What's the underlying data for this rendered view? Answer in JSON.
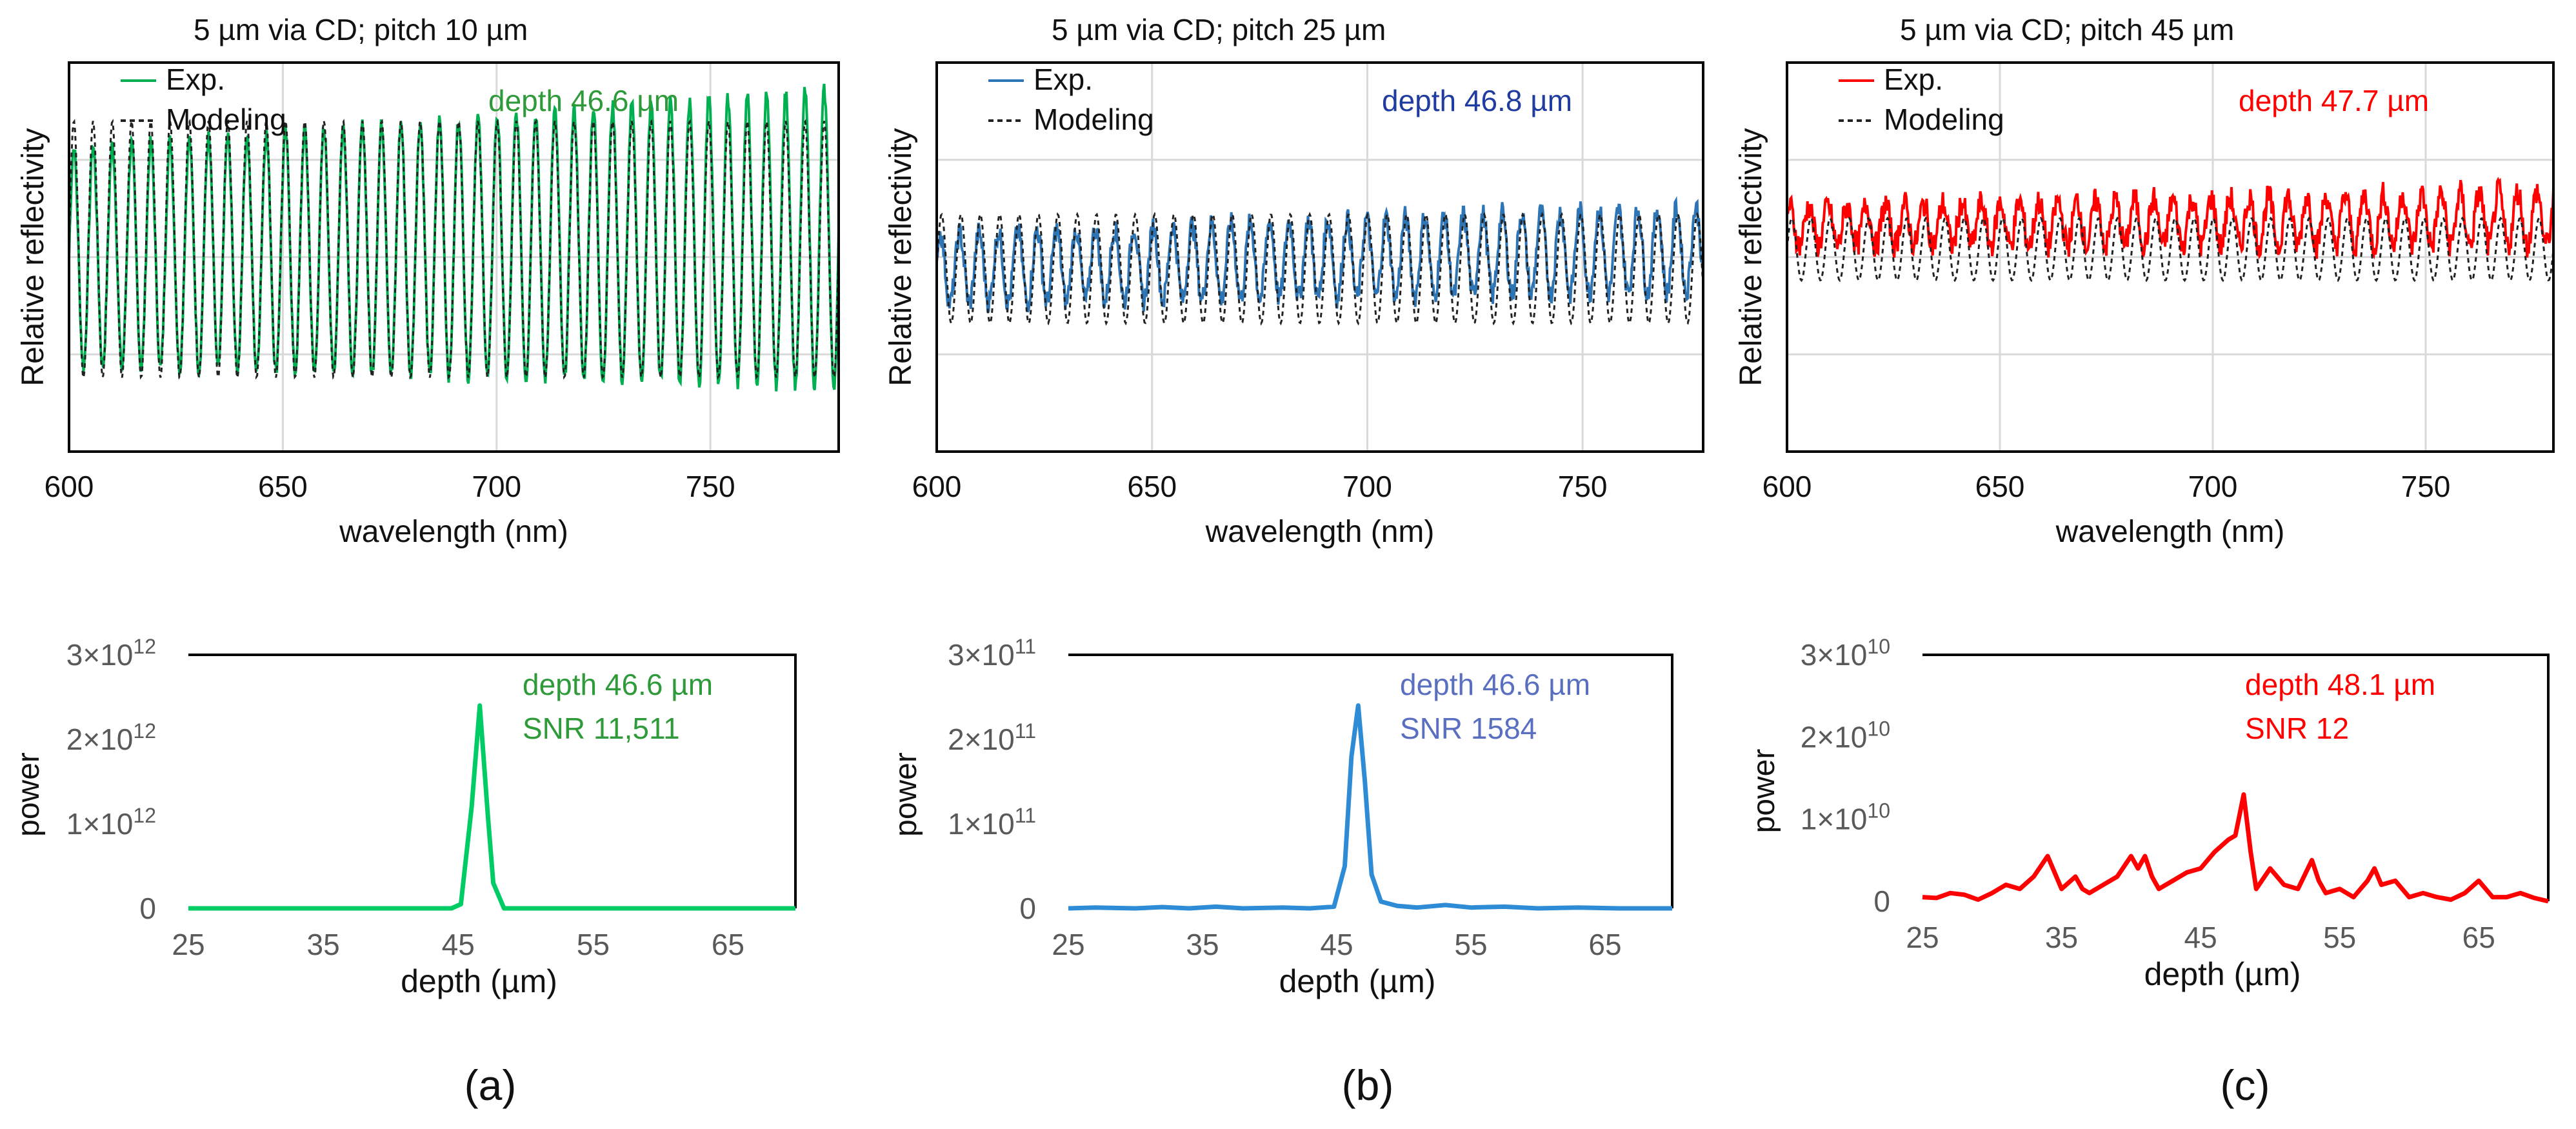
{
  "panels": [
    {
      "id": "a",
      "label": "(a)",
      "top_title": "5 µm via CD; pitch 10 µm",
      "color": "#00b050"
    },
    {
      "id": "b",
      "label": "(b)",
      "top_title": "5 µm via CD; pitch 25 µm",
      "color": "#2e75b6"
    },
    {
      "id": "c",
      "label": "(c)",
      "top_title": "5 µm via CD; pitch 45 µm",
      "color": "#ff0000"
    }
  ],
  "chart_data": [
    {
      "type": "line",
      "panel": "a",
      "title": "5 µm via CD; pitch 10 µm",
      "xlabel": "wavelength (nm)",
      "ylabel": "Relative reflectivity",
      "xlim": [
        600,
        780
      ],
      "ylim": [
        0,
        1
      ],
      "xticks": [
        600,
        650,
        700,
        750
      ],
      "yticks": [],
      "grid": true,
      "legend_position": "top-left",
      "annotation": {
        "text": "depth 46.6 µm",
        "color": "#2f9a3a"
      },
      "series": [
        {
          "name": "Exp.",
          "style": "solid",
          "color": "#00b050",
          "oscillation": {
            "period_nm": 4.5,
            "phase": 0.0,
            "amplitude_start": 0.28,
            "amplitude_end": 0.38,
            "mean_start": 0.5,
            "mean_end": 0.55,
            "noise": 0.02
          }
        },
        {
          "name": "Modeling",
          "style": "dashed",
          "color": "#222222",
          "oscillation": {
            "period_nm": 4.5,
            "phase": 0.0,
            "amplitude_start": 0.33,
            "amplitude_end": 0.33,
            "mean_start": 0.52,
            "mean_end": 0.52,
            "noise": 0.0
          }
        }
      ]
    },
    {
      "type": "line",
      "panel": "b",
      "title": "5 µm via CD; pitch 25 µm",
      "xlabel": "wavelength (nm)",
      "ylabel": "Relative reflectivity",
      "xlim": [
        600,
        778
      ],
      "ylim": [
        0,
        1
      ],
      "xticks": [
        600,
        650,
        700,
        750
      ],
      "yticks": [],
      "grid": true,
      "legend_position": "top-left",
      "annotation": {
        "text": "depth 46.8 µm",
        "color": "#1f3c9e"
      },
      "series": [
        {
          "name": "Exp.",
          "style": "solid",
          "color": "#2e75b6",
          "oscillation": {
            "period_nm": 4.5,
            "phase": 0.4,
            "amplitude_start": 0.09,
            "amplitude_end": 0.11,
            "mean_start": 0.47,
            "mean_end": 0.52,
            "noise": 0.03
          }
        },
        {
          "name": "Modeling",
          "style": "dashed",
          "color": "#222222",
          "oscillation": {
            "period_nm": 4.5,
            "phase": 0.0,
            "amplitude_start": 0.14,
            "amplitude_end": 0.14,
            "mean_start": 0.47,
            "mean_end": 0.47,
            "noise": 0.0
          }
        }
      ]
    },
    {
      "type": "line",
      "panel": "c",
      "title": "5 µm via CD; pitch 45 µm",
      "xlabel": "wavelength (nm)",
      "ylabel": "Relative reflectivity",
      "xlim": [
        600,
        780
      ],
      "ylim": [
        0,
        1
      ],
      "xticks": [
        600,
        650,
        700,
        750
      ],
      "yticks": [],
      "grid": true,
      "legend_position": "top-left",
      "annotation": {
        "text": "depth 47.7 µm",
        "color": "#ff0000"
      },
      "series": [
        {
          "name": "Exp.",
          "style": "solid",
          "color": "#ff0000",
          "oscillation": {
            "period_nm": 4.5,
            "phase": 0.7,
            "amplitude_start": 0.05,
            "amplitude_end": 0.07,
            "mean_start": 0.58,
            "mean_end": 0.6,
            "noise": 0.035
          }
        },
        {
          "name": "Modeling",
          "style": "dashed",
          "color": "#222222",
          "oscillation": {
            "period_nm": 4.5,
            "phase": 0.0,
            "amplitude_start": 0.08,
            "amplitude_end": 0.08,
            "mean_start": 0.52,
            "mean_end": 0.52,
            "noise": 0.0
          }
        }
      ]
    },
    {
      "type": "line",
      "panel": "a",
      "xlabel": "depth (µm)",
      "ylabel": "power",
      "xlim": [
        25,
        70
      ],
      "ylim": [
        0,
        3000000000000.0
      ],
      "xticks": [
        25,
        35,
        45,
        55,
        65
      ],
      "yticks": [
        0,
        1000000000000.0,
        2000000000000.0,
        3000000000000.0
      ],
      "ytick_labels": [
        {
          "m": "0",
          "e": ""
        },
        {
          "m": "1×10",
          "e": "12"
        },
        {
          "m": "2×10",
          "e": "12"
        },
        {
          "m": "3×10",
          "e": "12"
        }
      ],
      "grid": false,
      "annotations": [
        {
          "text": "depth 46.6 µm",
          "color": "#2f9a3a"
        },
        {
          "text": "SNR 11,511",
          "color": "#2f9a3a"
        }
      ],
      "series": [
        {
          "color": "#00cc66",
          "x": [
            25,
            44.5,
            45.2,
            46.0,
            46.6,
            47.2,
            47.6,
            48.4,
            70
          ],
          "y": [
            0,
            0,
            50000000000.0,
            1200000000000.0,
            2400000000000.0,
            1100000000000.0,
            300000000000.0,
            0,
            0
          ]
        }
      ]
    },
    {
      "type": "line",
      "panel": "b",
      "xlabel": "depth (µm)",
      "ylabel": "power",
      "xlim": [
        25,
        70
      ],
      "ylim": [
        0,
        300000000000.0
      ],
      "xticks": [
        25,
        35,
        45,
        55,
        65
      ],
      "yticks": [
        0,
        100000000000.0,
        200000000000.0,
        300000000000.0
      ],
      "ytick_labels": [
        {
          "m": "0",
          "e": ""
        },
        {
          "m": "1×10",
          "e": "11"
        },
        {
          "m": "2×10",
          "e": "11"
        },
        {
          "m": "3×10",
          "e": "11"
        }
      ],
      "grid": false,
      "annotations": [
        {
          "text": "depth 46.6 µm",
          "color": "#5a6fc0"
        },
        {
          "text": "SNR 1584",
          "color": "#5a6fc0"
        }
      ],
      "series": [
        {
          "color": "#2e8bd6",
          "x": [
            25,
            27,
            30,
            32,
            34,
            36,
            38,
            41,
            43,
            44.8,
            45.6,
            46.1,
            46.6,
            47.1,
            47.6,
            48.3,
            49.5,
            51,
            53.1,
            55,
            57.5,
            60,
            63,
            66,
            70
          ],
          "y": [
            0,
            1000000000.0,
            0,
            1500000000.0,
            0,
            2000000000.0,
            0,
            1000000000.0,
            0,
            2000000000.0,
            50000000000.0,
            180000000000.0,
            240000000000.0,
            150000000000.0,
            40000000000.0,
            8000000000.0,
            3000000000.0,
            1000000000.0,
            4000000000.0,
            1000000000.0,
            2000000000.0,
            0,
            1000000000.0,
            0,
            0
          ]
        }
      ]
    },
    {
      "type": "line",
      "panel": "c",
      "xlabel": "depth (µm)",
      "ylabel": "power",
      "xlim": [
        25,
        70
      ],
      "ylim": [
        0,
        30000000000.0
      ],
      "xticks": [
        25,
        35,
        45,
        55,
        65
      ],
      "yticks": [
        0,
        10000000000.0,
        20000000000.0,
        30000000000.0
      ],
      "ytick_labels": [
        {
          "m": "0",
          "e": ""
        },
        {
          "m": "1×10",
          "e": "10"
        },
        {
          "m": "2×10",
          "e": "10"
        },
        {
          "m": "3×10",
          "e": "10"
        }
      ],
      "grid": false,
      "annotations": [
        {
          "text": "depth 48.1 µm",
          "color": "#ff0000"
        },
        {
          "text": "SNR 12",
          "color": "#ff0000"
        }
      ],
      "series": [
        {
          "color": "#ff0000",
          "x": [
            25,
            26,
            27,
            28,
            29,
            30,
            31,
            32,
            33,
            34,
            34.5,
            35,
            36,
            36.5,
            37,
            38,
            39,
            40,
            40.5,
            41,
            41.5,
            42,
            43,
            44,
            45,
            46,
            47,
            47.5,
            48.1,
            48.6,
            49,
            50,
            51,
            52,
            53,
            53.5,
            54,
            55,
            56,
            57,
            57.5,
            58,
            59,
            60,
            61,
            62,
            63,
            64,
            65,
            65.5,
            66,
            67,
            68,
            69,
            70
          ],
          "y": [
            500000000.0,
            400000000.0,
            1000000000.0,
            800000000.0,
            200000000.0,
            1000000000.0,
            2000000000.0,
            1500000000.0,
            3000000000.0,
            5500000000.0,
            3500000000.0,
            1500000000.0,
            3000000000.0,
            1500000000.0,
            1000000000.0,
            2000000000.0,
            3000000000.0,
            5500000000.0,
            4000000000.0,
            5500000000.0,
            3000000000.0,
            1500000000.0,
            2500000000.0,
            3500000000.0,
            4000000000.0,
            6000000000.0,
            7500000000.0,
            8000000000.0,
            13000000000.0,
            6000000000.0,
            1500000000.0,
            4000000000.0,
            2000000000.0,
            1500000000.0,
            5000000000.0,
            2500000000.0,
            1000000000.0,
            1500000000.0,
            500000000.0,
            2500000000.0,
            4000000000.0,
            2000000000.0,
            2500000000.0,
            500000000.0,
            1000000000.0,
            500000000.0,
            200000000.0,
            1000000000.0,
            2500000000.0,
            1500000000.0,
            500000000.0,
            500000000.0,
            1000000000.0,
            400000000.0,
            0
          ]
        }
      ]
    }
  ]
}
